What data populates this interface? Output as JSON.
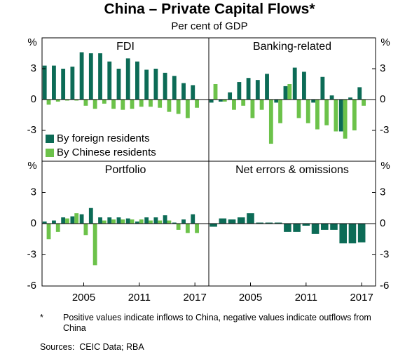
{
  "header": {
    "title": "China – Private Capital Flows*",
    "subtitle": "Per cent of GDP"
  },
  "notes": {
    "marker": "*",
    "text": "Positive values indicate inflows to China, negative values indicate outflows from China",
    "sources": "Sources:  CEIC Data; RBA"
  },
  "chart_data": [
    {
      "type": "bar",
      "title": "FDI",
      "ylabel": "%",
      "x": [
        2001,
        2002,
        2003,
        2004,
        2005,
        2006,
        2007,
        2008,
        2009,
        2010,
        2011,
        2012,
        2013,
        2014,
        2015,
        2016,
        2017
      ],
      "xlim": [
        2000.5,
        2018.5
      ],
      "ylim": [
        -6,
        6
      ],
      "yticks": [
        -3,
        0,
        3
      ],
      "legend": "lower left",
      "series": [
        {
          "name": "By foreign residents",
          "color": "#0c6b56",
          "values": [
            3.3,
            3.3,
            3.0,
            3.2,
            4.6,
            4.5,
            4.5,
            3.7,
            3.0,
            4.0,
            3.7,
            2.9,
            3.0,
            2.6,
            2.3,
            1.6,
            1.4
          ]
        },
        {
          "name": "By Chinese residents",
          "color": "#6cc24a",
          "values": [
            -0.5,
            -0.2,
            -0.1,
            -0.1,
            -0.6,
            -0.9,
            -0.4,
            -0.9,
            -1.0,
            -0.9,
            -0.7,
            -0.7,
            -0.8,
            -1.2,
            -1.4,
            -1.8,
            -0.8
          ]
        }
      ]
    },
    {
      "type": "bar",
      "title": "Banking-related",
      "ylabel": "%",
      "x": [
        2001,
        2002,
        2003,
        2004,
        2005,
        2006,
        2007,
        2008,
        2009,
        2010,
        2011,
        2012,
        2013,
        2014,
        2015,
        2016,
        2017
      ],
      "xlim": [
        2000.5,
        2018.5
      ],
      "ylim": [
        -6,
        6
      ],
      "yticks": [
        -3,
        0,
        3
      ],
      "series": [
        {
          "color": "#0c6b56",
          "values": [
            -0.3,
            -0.2,
            0.7,
            1.7,
            2.1,
            1.9,
            2.5,
            -0.3,
            1.3,
            3.1,
            2.7,
            -0.3,
            2.2,
            0.4,
            -3.1,
            0.2,
            1.2
          ]
        },
        {
          "color": "#6cc24a",
          "values": [
            1.5,
            -0.2,
            -1.0,
            -0.6,
            -1.8,
            -1.0,
            -4.3,
            -2.3,
            1.5,
            -1.8,
            -2.3,
            -2.9,
            -2.5,
            -3.1,
            -3.8,
            -3.0,
            -0.6
          ]
        }
      ]
    },
    {
      "type": "bar",
      "title": "Portfolio",
      "ylabel": "%",
      "x": [
        2001,
        2002,
        2003,
        2004,
        2005,
        2006,
        2007,
        2008,
        2009,
        2010,
        2011,
        2012,
        2013,
        2014,
        2015,
        2016,
        2017
      ],
      "xlim": [
        2000.5,
        2018.5
      ],
      "ylim": [
        -6,
        6
      ],
      "yticks": [
        -6,
        -3,
        0,
        3
      ],
      "xticks": [
        2005,
        2011,
        2017
      ],
      "series": [
        {
          "color": "#0c6b56",
          "values": [
            0.2,
            0.3,
            0.6,
            0.7,
            0.9,
            1.5,
            0.6,
            0.6,
            0.6,
            0.5,
            0.2,
            0.6,
            0.6,
            0.8,
            0.1,
            0.4,
            0.9
          ]
        },
        {
          "color": "#6cc24a",
          "values": [
            -1.5,
            -0.8,
            0.5,
            1.0,
            -1.1,
            -4.0,
            0.3,
            0.4,
            0.4,
            0.4,
            0.4,
            0.3,
            0.3,
            0.3,
            -0.6,
            -0.9,
            -0.9
          ]
        }
      ]
    },
    {
      "type": "bar",
      "title": "Net errors & omissions",
      "ylabel": "%",
      "x": [
        2001,
        2002,
        2003,
        2004,
        2005,
        2006,
        2007,
        2008,
        2009,
        2010,
        2011,
        2012,
        2013,
        2014,
        2015,
        2016,
        2017
      ],
      "xlim": [
        2000.5,
        2018.5
      ],
      "ylim": [
        -6,
        6
      ],
      "yticks": [
        -6,
        -3,
        0,
        3
      ],
      "xticks": [
        2005,
        2011,
        2017
      ],
      "series": [
        {
          "color": "#0c6b56",
          "values": [
            -0.3,
            0.5,
            0.4,
            0.6,
            1.0,
            0.1,
            0.1,
            0.1,
            -0.8,
            -0.8,
            -0.2,
            -1.0,
            -0.6,
            -0.6,
            -1.9,
            -1.9,
            -1.8
          ]
        }
      ]
    }
  ]
}
